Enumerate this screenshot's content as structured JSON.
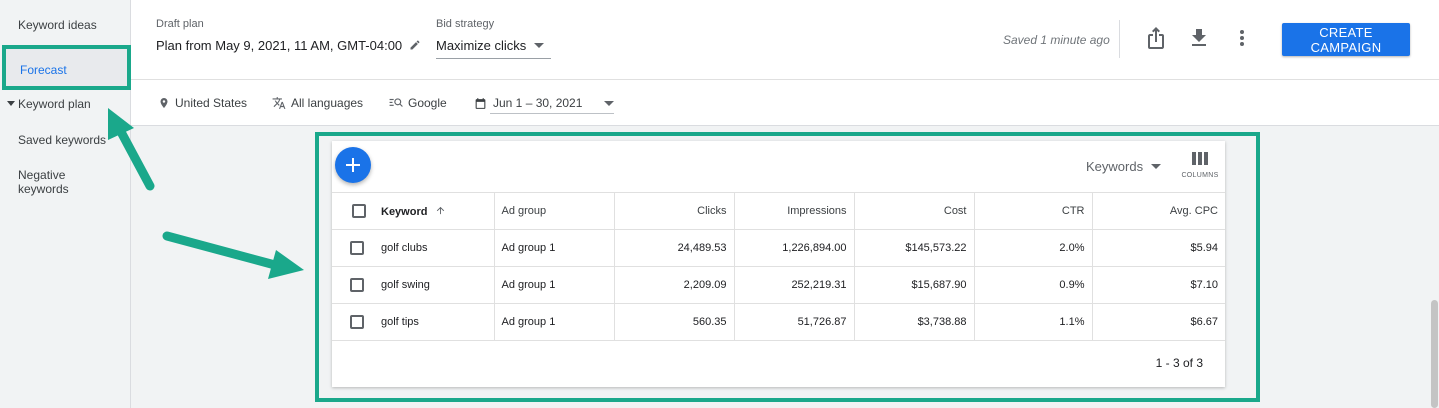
{
  "sidebar": {
    "items": [
      {
        "label": "Keyword ideas"
      },
      {
        "label": "Forecast"
      },
      {
        "label": "Keyword plan"
      },
      {
        "label": "Saved keywords"
      },
      {
        "label": "Negative keywords"
      }
    ]
  },
  "header": {
    "draft_label": "Draft plan",
    "draft_value": "Plan from May 9, 2021, 11 AM, GMT-04:00",
    "bid_label": "Bid strategy",
    "bid_value": "Maximize clicks",
    "saved_status": "Saved 1 minute ago",
    "create_campaign": "CREATE CAMPAIGN"
  },
  "filters": {
    "location": "United States",
    "language": "All languages",
    "network": "Google",
    "date_range": "Jun 1 – 30, 2021"
  },
  "table": {
    "view_select": "Keywords",
    "columns_label": "COLUMNS",
    "headers": [
      "Keyword",
      "Ad group",
      "Clicks",
      "Impressions",
      "Cost",
      "CTR",
      "Avg. CPC"
    ],
    "rows": [
      [
        "golf clubs",
        "Ad group 1",
        "24,489.53",
        "1,226,894.00",
        "$145,573.22",
        "2.0%",
        "$5.94"
      ],
      [
        "golf swing",
        "Ad group 1",
        "2,209.09",
        "252,219.31",
        "$15,687.90",
        "0.9%",
        "$7.10"
      ],
      [
        "golf tips",
        "Ad group 1",
        "560.35",
        "51,726.87",
        "$3,738.88",
        "1.1%",
        "$6.67"
      ]
    ],
    "pagination": "1 - 3 of 3"
  },
  "colors": {
    "accent": "#1a73e8",
    "highlight": "#1aa88b"
  },
  "icons": [
    "location-pin-icon",
    "translate-icon",
    "search-network-icon",
    "calendar-icon",
    "edit-pencil-icon",
    "share-icon",
    "download-icon",
    "more-vert-icon",
    "plus-icon",
    "columns-icon",
    "sort-arrow-up-icon"
  ]
}
